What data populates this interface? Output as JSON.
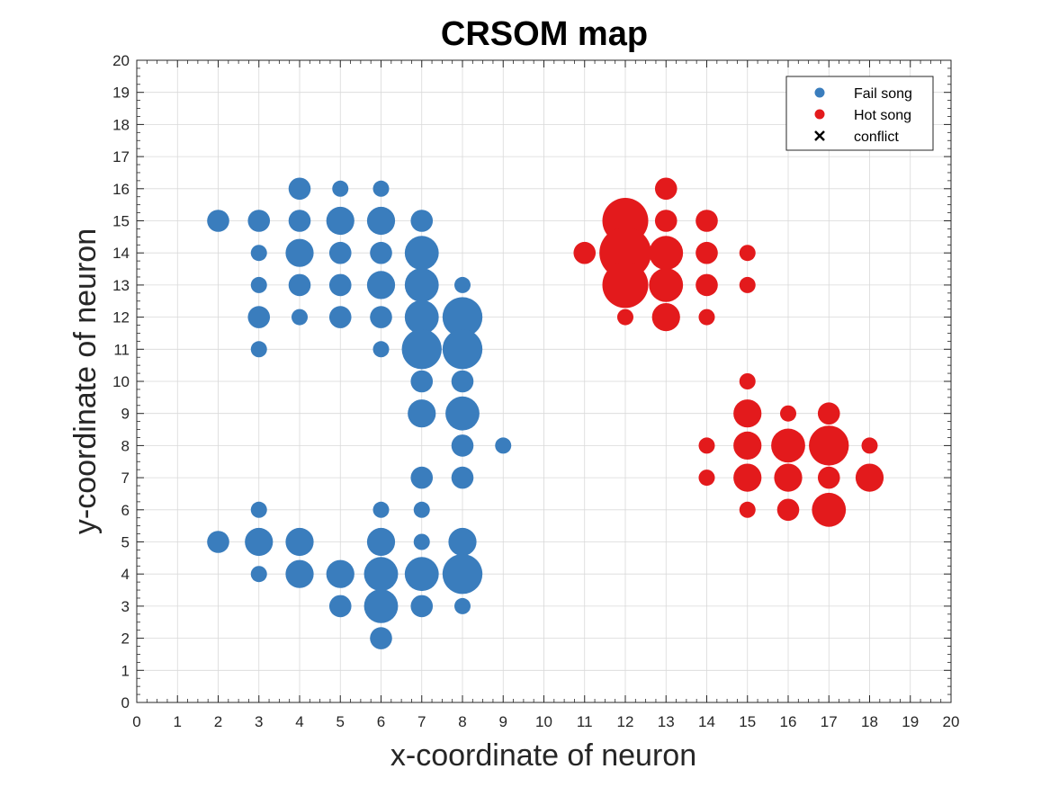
{
  "chart_data": {
    "type": "scatter",
    "title": "CRSOM map",
    "xlabel": "x-coordinate of neuron",
    "ylabel": "y-coordinate of neuron",
    "xlim": [
      0,
      20
    ],
    "ylim": [
      0,
      20
    ],
    "xticks": [
      "0",
      "1",
      "2",
      "3",
      "4",
      "5",
      "6",
      "7",
      "8",
      "9",
      "10",
      "11",
      "12",
      "13",
      "14",
      "15",
      "16",
      "17",
      "18",
      "19",
      "20"
    ],
    "yticks": [
      "0",
      "1",
      "2",
      "3",
      "4",
      "5",
      "6",
      "7",
      "8",
      "9",
      "10",
      "11",
      "12",
      "13",
      "14",
      "15",
      "16",
      "17",
      "18",
      "19",
      "20"
    ],
    "grid": true,
    "legend_position": "top-right",
    "series": [
      {
        "name": "Fail song",
        "color": "#3a7dbd",
        "marker": "circle",
        "points": [
          {
            "x": 2,
            "y": 15,
            "size": 2
          },
          {
            "x": 3,
            "y": 15,
            "size": 2
          },
          {
            "x": 4,
            "y": 16,
            "size": 2
          },
          {
            "x": 4,
            "y": 15,
            "size": 2
          },
          {
            "x": 5,
            "y": 16,
            "size": 1
          },
          {
            "x": 5,
            "y": 15,
            "size": 3
          },
          {
            "x": 6,
            "y": 16,
            "size": 1
          },
          {
            "x": 6,
            "y": 15,
            "size": 3
          },
          {
            "x": 7,
            "y": 15,
            "size": 2
          },
          {
            "x": 3,
            "y": 14,
            "size": 1
          },
          {
            "x": 4,
            "y": 14,
            "size": 3
          },
          {
            "x": 5,
            "y": 14,
            "size": 2
          },
          {
            "x": 6,
            "y": 14,
            "size": 2
          },
          {
            "x": 7,
            "y": 14,
            "size": 4
          },
          {
            "x": 3,
            "y": 13,
            "size": 1
          },
          {
            "x": 4,
            "y": 13,
            "size": 2
          },
          {
            "x": 5,
            "y": 13,
            "size": 2
          },
          {
            "x": 6,
            "y": 13,
            "size": 3
          },
          {
            "x": 7,
            "y": 13,
            "size": 4
          },
          {
            "x": 8,
            "y": 13,
            "size": 1
          },
          {
            "x": 3,
            "y": 12,
            "size": 2
          },
          {
            "x": 4,
            "y": 12,
            "size": 1
          },
          {
            "x": 5,
            "y": 12,
            "size": 2
          },
          {
            "x": 6,
            "y": 12,
            "size": 2
          },
          {
            "x": 7,
            "y": 12,
            "size": 4
          },
          {
            "x": 8,
            "y": 12,
            "size": 5
          },
          {
            "x": 3,
            "y": 11,
            "size": 1
          },
          {
            "x": 6,
            "y": 11,
            "size": 1
          },
          {
            "x": 7,
            "y": 11,
            "size": 5
          },
          {
            "x": 8,
            "y": 11,
            "size": 5
          },
          {
            "x": 7,
            "y": 10,
            "size": 2
          },
          {
            "x": 8,
            "y": 10,
            "size": 2
          },
          {
            "x": 7,
            "y": 9,
            "size": 3
          },
          {
            "x": 8,
            "y": 9,
            "size": 4
          },
          {
            "x": 8,
            "y": 8,
            "size": 2
          },
          {
            "x": 9,
            "y": 8,
            "size": 1
          },
          {
            "x": 7,
            "y": 7,
            "size": 2
          },
          {
            "x": 8,
            "y": 7,
            "size": 2
          },
          {
            "x": 3,
            "y": 6,
            "size": 1
          },
          {
            "x": 6,
            "y": 6,
            "size": 1
          },
          {
            "x": 7,
            "y": 6,
            "size": 1
          },
          {
            "x": 2,
            "y": 5,
            "size": 2
          },
          {
            "x": 3,
            "y": 5,
            "size": 3
          },
          {
            "x": 4,
            "y": 5,
            "size": 3
          },
          {
            "x": 6,
            "y": 5,
            "size": 3
          },
          {
            "x": 7,
            "y": 5,
            "size": 1
          },
          {
            "x": 8,
            "y": 5,
            "size": 3
          },
          {
            "x": 3,
            "y": 4,
            "size": 1
          },
          {
            "x": 4,
            "y": 4,
            "size": 3
          },
          {
            "x": 5,
            "y": 4,
            "size": 3
          },
          {
            "x": 6,
            "y": 4,
            "size": 4
          },
          {
            "x": 7,
            "y": 4,
            "size": 4
          },
          {
            "x": 8,
            "y": 4,
            "size": 5
          },
          {
            "x": 5,
            "y": 3,
            "size": 2
          },
          {
            "x": 6,
            "y": 3,
            "size": 4
          },
          {
            "x": 7,
            "y": 3,
            "size": 2
          },
          {
            "x": 8,
            "y": 3,
            "size": 1
          },
          {
            "x": 6,
            "y": 2,
            "size": 2
          }
        ]
      },
      {
        "name": "Hot song",
        "color": "#e31a1c",
        "marker": "circle",
        "points": [
          {
            "x": 13,
            "y": 16,
            "size": 2
          },
          {
            "x": 12,
            "y": 15,
            "size": 6
          },
          {
            "x": 13,
            "y": 15,
            "size": 2
          },
          {
            "x": 14,
            "y": 15,
            "size": 2
          },
          {
            "x": 11,
            "y": 14,
            "size": 2
          },
          {
            "x": 12,
            "y": 14,
            "size": 7
          },
          {
            "x": 13,
            "y": 14,
            "size": 4
          },
          {
            "x": 14,
            "y": 14,
            "size": 2
          },
          {
            "x": 15,
            "y": 14,
            "size": 1
          },
          {
            "x": 12,
            "y": 13,
            "size": 6
          },
          {
            "x": 13,
            "y": 13,
            "size": 4
          },
          {
            "x": 14,
            "y": 13,
            "size": 2
          },
          {
            "x": 15,
            "y": 13,
            "size": 1
          },
          {
            "x": 12,
            "y": 12,
            "size": 1
          },
          {
            "x": 13,
            "y": 12,
            "size": 3
          },
          {
            "x": 14,
            "y": 12,
            "size": 1
          },
          {
            "x": 15,
            "y": 10,
            "size": 1
          },
          {
            "x": 15,
            "y": 9,
            "size": 3
          },
          {
            "x": 16,
            "y": 9,
            "size": 1
          },
          {
            "x": 17,
            "y": 9,
            "size": 2
          },
          {
            "x": 14,
            "y": 8,
            "size": 1
          },
          {
            "x": 15,
            "y": 8,
            "size": 3
          },
          {
            "x": 16,
            "y": 8,
            "size": 4
          },
          {
            "x": 17,
            "y": 8,
            "size": 5
          },
          {
            "x": 18,
            "y": 8,
            "size": 1
          },
          {
            "x": 14,
            "y": 7,
            "size": 1
          },
          {
            "x": 15,
            "y": 7,
            "size": 3
          },
          {
            "x": 16,
            "y": 7,
            "size": 3
          },
          {
            "x": 17,
            "y": 7,
            "size": 2
          },
          {
            "x": 18,
            "y": 7,
            "size": 3
          },
          {
            "x": 15,
            "y": 6,
            "size": 1
          },
          {
            "x": 16,
            "y": 6,
            "size": 2
          },
          {
            "x": 17,
            "y": 6,
            "size": 4
          }
        ]
      },
      {
        "name": "conflict",
        "color": "#000000",
        "marker": "x",
        "points": []
      }
    ]
  }
}
